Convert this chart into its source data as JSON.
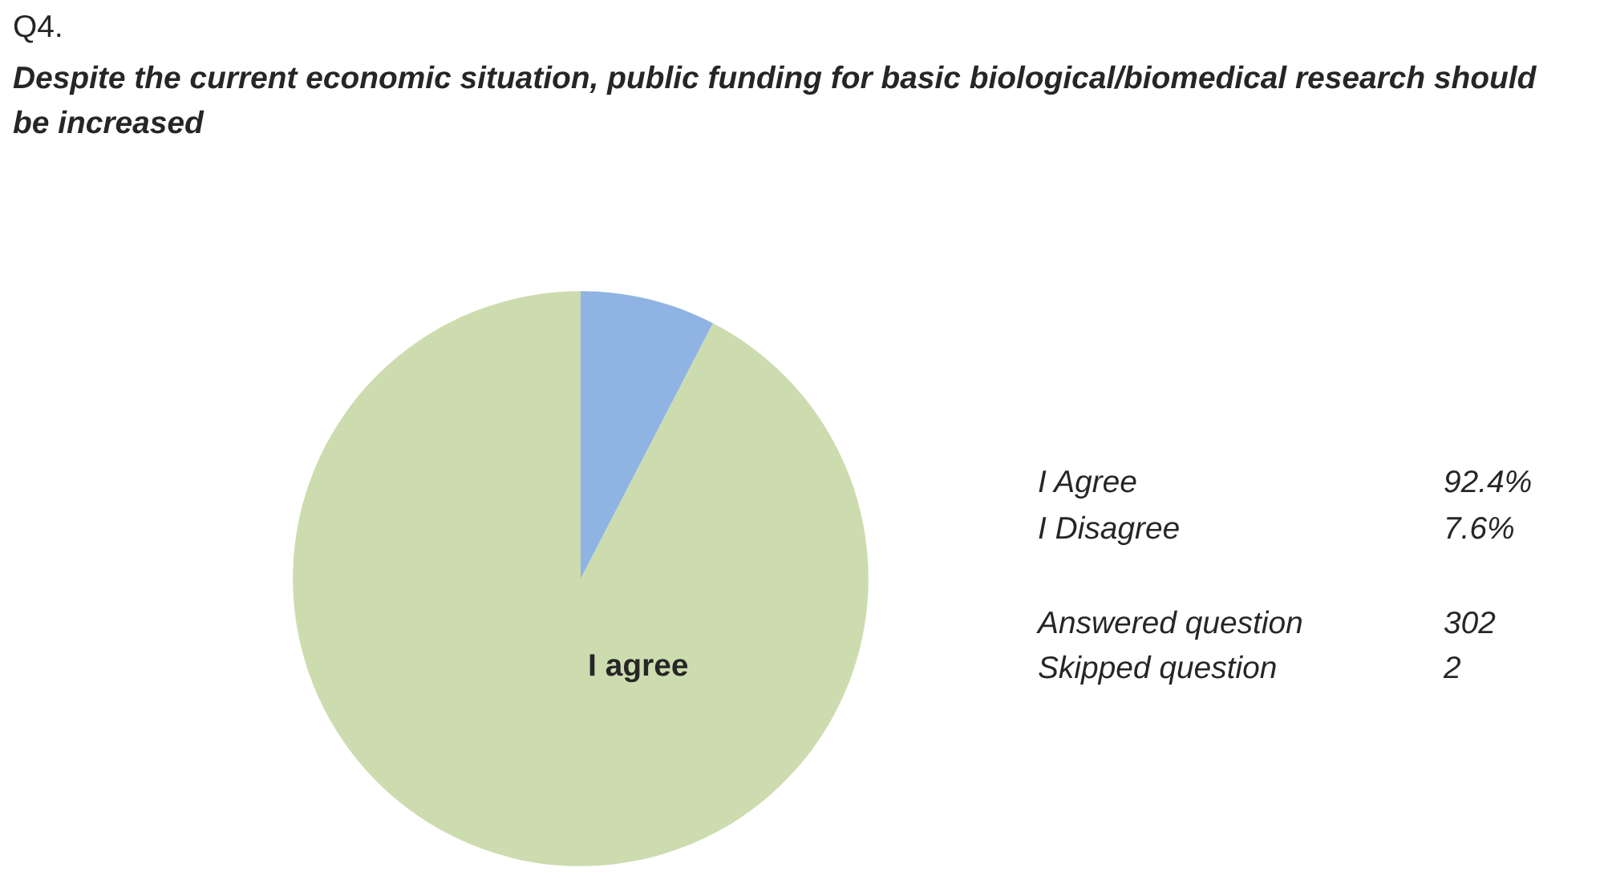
{
  "chart_data": {
    "type": "pie",
    "title": "Q4.",
    "subtitle": "Despite the current economic situation, public funding for basic biological/biomedical research should be increased",
    "categories": [
      null,
      null
    ],
    "values": [
      92.4,
      7.6
    ],
    "colors": [
      "#cddcaf",
      "#8fb4e3"
    ],
    "annotations": [
      "I agree",
      "I Agree",
      "92.4%",
      "I Disagree",
      "7.6%",
      "Answered question",
      "302",
      "Skipped question",
      "2"
    ]
  }
}
